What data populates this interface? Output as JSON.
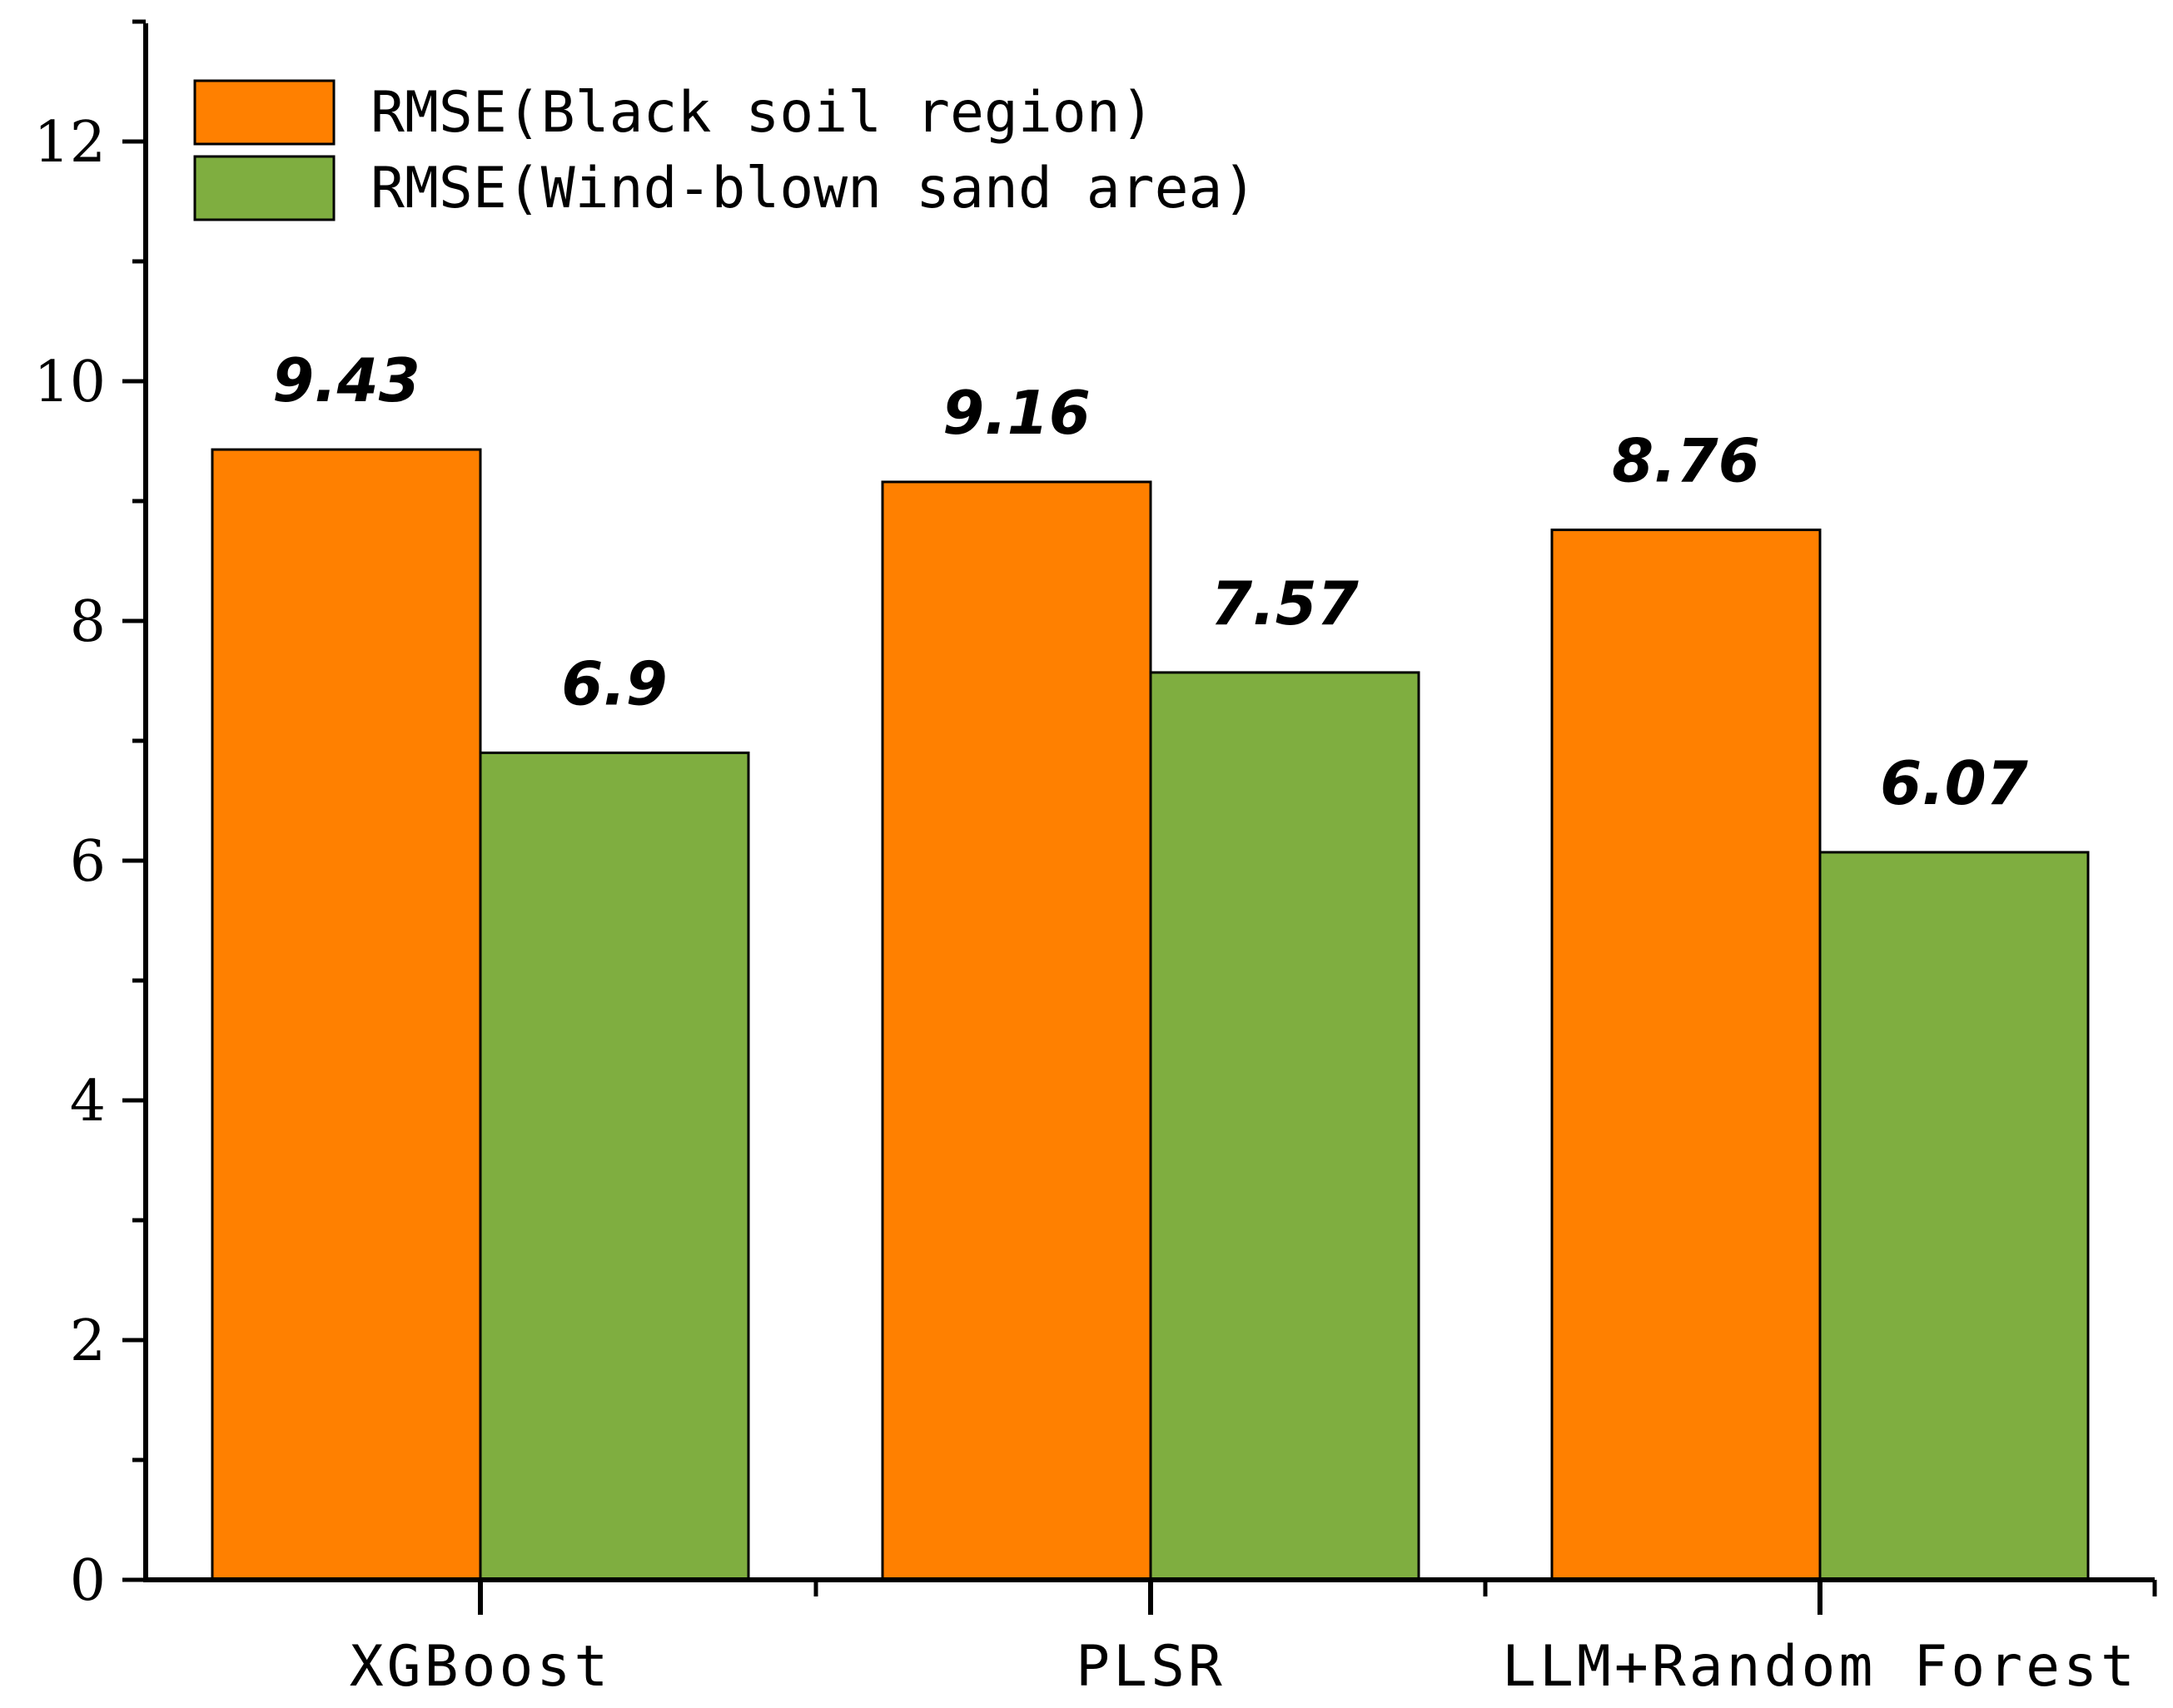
{
  "chart_data": {
    "type": "bar",
    "categories": [
      "XGBoost",
      "PLSR",
      "LLM+Random Forest"
    ],
    "series": [
      {
        "name": "RMSE(Black soil region)",
        "values": [
          9.43,
          9.16,
          8.76
        ],
        "color": "#FF8000",
        "labels": [
          "9.43",
          "9.16",
          "8.76"
        ]
      },
      {
        "name": "RMSE(Wind-blown sand area)",
        "values": [
          6.9,
          7.57,
          6.07
        ],
        "color": "#7FAE40",
        "labels": [
          "6.9",
          "7.57",
          "6.07"
        ]
      }
    ],
    "y_ticks": [
      0,
      2,
      4,
      6,
      8,
      10,
      12
    ],
    "y_tick_labels": [
      "0",
      "2",
      "4",
      "6",
      "8",
      "10",
      "12"
    ],
    "ylim": [
      0,
      13
    ],
    "xlabel": "",
    "ylabel": "",
    "title": "",
    "grid": false,
    "legend_position": "top-left"
  }
}
